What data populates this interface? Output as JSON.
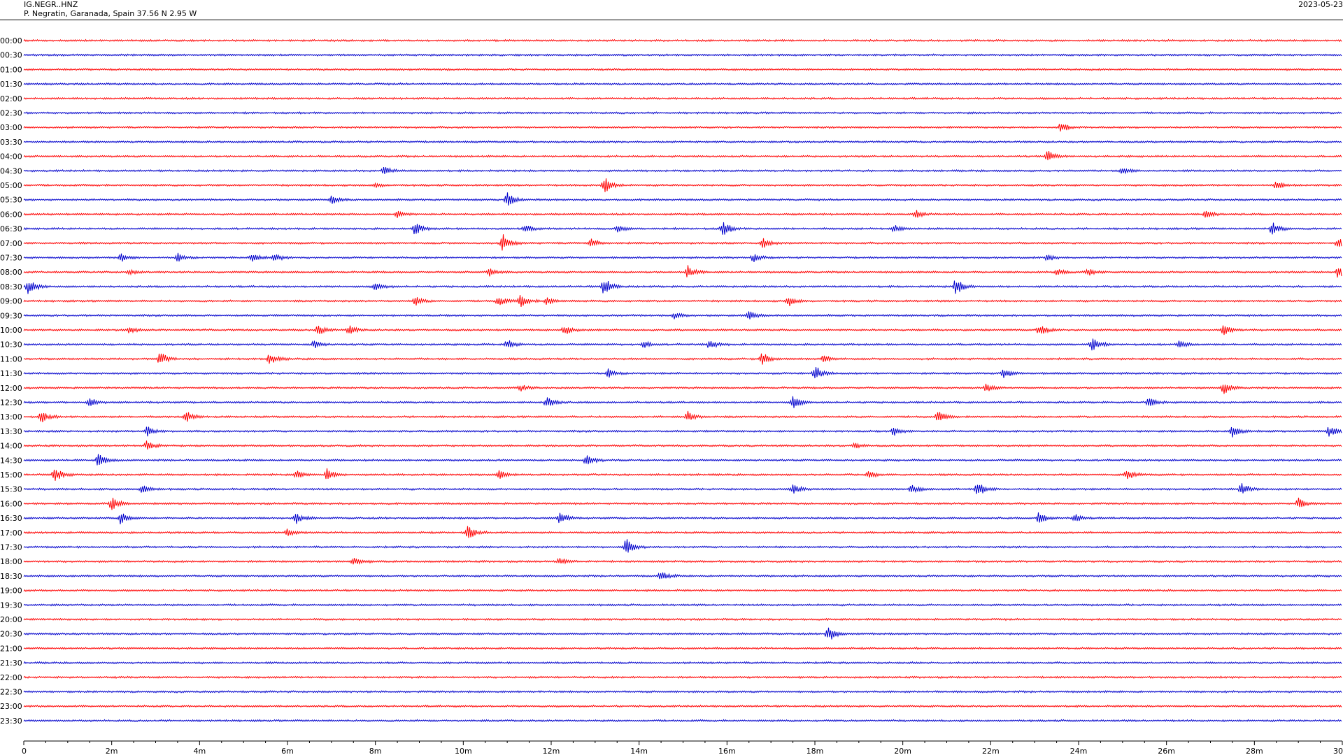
{
  "header": {
    "station": "IG.NEGR..HNZ",
    "location": "P. Negratin, Garanada, Spain  37.56 N 2.95 W",
    "date": "2023-05-23"
  },
  "colors": {
    "odd_trace": "#ff0000",
    "even_trace": "#0000cc",
    "axis": "#000000"
  },
  "chart_data": {
    "type": "line",
    "title": "",
    "row_labels": [
      "00:00",
      "00:30",
      "01:00",
      "01:30",
      "02:00",
      "02:30",
      "03:00",
      "03:30",
      "04:00",
      "04:30",
      "05:00",
      "05:30",
      "06:00",
      "06:30",
      "07:00",
      "07:30",
      "08:00",
      "08:30",
      "09:00",
      "09:30",
      "10:00",
      "10:30",
      "11:00",
      "11:30",
      "12:00",
      "12:30",
      "13:00",
      "13:30",
      "14:00",
      "14:30",
      "15:00",
      "15:30",
      "16:00",
      "16:30",
      "17:00",
      "17:30",
      "18:00",
      "18:30",
      "19:00",
      "19:30",
      "20:00",
      "20:30",
      "21:00",
      "21:30",
      "22:00",
      "22:30",
      "23:00",
      "23:30"
    ],
    "x_ticks": [
      "0",
      "2m",
      "4m",
      "6m",
      "8m",
      "10m",
      "12m",
      "14m",
      "16m",
      "18m",
      "20m",
      "22m",
      "24m",
      "26m",
      "28m",
      "30"
    ],
    "xlim_minutes": [
      0,
      30
    ],
    "events": [
      {
        "row": "03:00",
        "t": 23.6,
        "amp": 0.45
      },
      {
        "row": "04:00",
        "t": 23.3,
        "amp": 0.5
      },
      {
        "row": "04:30",
        "t": 8.2,
        "amp": 0.4
      },
      {
        "row": "04:30",
        "t": 25.0,
        "amp": 0.3
      },
      {
        "row": "05:00",
        "t": 13.2,
        "amp": 0.8
      },
      {
        "row": "05:00",
        "t": 28.5,
        "amp": 0.4
      },
      {
        "row": "05:00",
        "t": 8.0,
        "amp": 0.2
      },
      {
        "row": "05:30",
        "t": 7.0,
        "amp": 0.4
      },
      {
        "row": "05:30",
        "t": 11.0,
        "amp": 0.6
      },
      {
        "row": "06:00",
        "t": 8.5,
        "amp": 0.3
      },
      {
        "row": "06:00",
        "t": 20.3,
        "amp": 0.35
      },
      {
        "row": "06:00",
        "t": 26.9,
        "amp": 0.4
      },
      {
        "row": "06:30",
        "t": 8.9,
        "amp": 0.55
      },
      {
        "row": "06:30",
        "t": 11.4,
        "amp": 0.35
      },
      {
        "row": "06:30",
        "t": 13.5,
        "amp": 0.3
      },
      {
        "row": "06:30",
        "t": 15.9,
        "amp": 0.7
      },
      {
        "row": "06:30",
        "t": 19.8,
        "amp": 0.3
      },
      {
        "row": "06:30",
        "t": 28.4,
        "amp": 0.6
      },
      {
        "row": "07:00",
        "t": 10.9,
        "amp": 0.75
      },
      {
        "row": "07:00",
        "t": 12.9,
        "amp": 0.4
      },
      {
        "row": "07:00",
        "t": 16.8,
        "amp": 0.5
      },
      {
        "row": "07:00",
        "t": 29.9,
        "amp": 0.45
      },
      {
        "row": "07:30",
        "t": 2.2,
        "amp": 0.4
      },
      {
        "row": "07:30",
        "t": 3.5,
        "amp": 0.4
      },
      {
        "row": "07:30",
        "t": 5.2,
        "amp": 0.45
      },
      {
        "row": "07:30",
        "t": 5.7,
        "amp": 0.4
      },
      {
        "row": "07:30",
        "t": 16.6,
        "amp": 0.35
      },
      {
        "row": "07:30",
        "t": 23.3,
        "amp": 0.3
      },
      {
        "row": "08:00",
        "t": 2.4,
        "amp": 0.2
      },
      {
        "row": "08:00",
        "t": 10.6,
        "amp": 0.35
      },
      {
        "row": "08:00",
        "t": 15.1,
        "amp": 0.6
      },
      {
        "row": "08:00",
        "t": 23.5,
        "amp": 0.3
      },
      {
        "row": "08:00",
        "t": 24.2,
        "amp": 0.35
      },
      {
        "row": "08:00",
        "t": 29.9,
        "amp": 0.55
      },
      {
        "row": "08:30",
        "t": 0.1,
        "amp": 0.75
      },
      {
        "row": "08:30",
        "t": 8.0,
        "amp": 0.35
      },
      {
        "row": "08:30",
        "t": 13.2,
        "amp": 0.85
      },
      {
        "row": "08:30",
        "t": 21.2,
        "amp": 0.8
      },
      {
        "row": "09:00",
        "t": 8.9,
        "amp": 0.4
      },
      {
        "row": "09:00",
        "t": 10.8,
        "amp": 0.45
      },
      {
        "row": "09:00",
        "t": 11.3,
        "amp": 0.55
      },
      {
        "row": "09:00",
        "t": 11.9,
        "amp": 0.35
      },
      {
        "row": "09:00",
        "t": 17.4,
        "amp": 0.45
      },
      {
        "row": "09:30",
        "t": 14.8,
        "amp": 0.35
      },
      {
        "row": "09:30",
        "t": 16.5,
        "amp": 0.45
      },
      {
        "row": "10:00",
        "t": 2.4,
        "amp": 0.3
      },
      {
        "row": "10:00",
        "t": 6.7,
        "amp": 0.45
      },
      {
        "row": "10:00",
        "t": 7.4,
        "amp": 0.4
      },
      {
        "row": "10:00",
        "t": 12.3,
        "amp": 0.45
      },
      {
        "row": "10:00",
        "t": 23.1,
        "amp": 0.5
      },
      {
        "row": "10:00",
        "t": 27.3,
        "amp": 0.45
      },
      {
        "row": "10:30",
        "t": 6.6,
        "amp": 0.35
      },
      {
        "row": "10:30",
        "t": 11.0,
        "amp": 0.45
      },
      {
        "row": "10:30",
        "t": 14.1,
        "amp": 0.3
      },
      {
        "row": "10:30",
        "t": 15.6,
        "amp": 0.4
      },
      {
        "row": "10:30",
        "t": 24.3,
        "amp": 0.65
      },
      {
        "row": "10:30",
        "t": 26.3,
        "amp": 0.35
      },
      {
        "row": "11:00",
        "t": 3.1,
        "amp": 0.6
      },
      {
        "row": "11:00",
        "t": 5.6,
        "amp": 0.5
      },
      {
        "row": "11:00",
        "t": 16.8,
        "amp": 0.6
      },
      {
        "row": "11:00",
        "t": 18.2,
        "amp": 0.35
      },
      {
        "row": "11:30",
        "t": 13.3,
        "amp": 0.4
      },
      {
        "row": "11:30",
        "t": 18.0,
        "amp": 0.7
      },
      {
        "row": "11:30",
        "t": 22.3,
        "amp": 0.45
      },
      {
        "row": "12:00",
        "t": 11.3,
        "amp": 0.3
      },
      {
        "row": "12:00",
        "t": 21.9,
        "amp": 0.35
      },
      {
        "row": "12:00",
        "t": 27.3,
        "amp": 0.55
      },
      {
        "row": "12:30",
        "t": 1.5,
        "amp": 0.45
      },
      {
        "row": "12:30",
        "t": 11.9,
        "amp": 0.55
      },
      {
        "row": "12:30",
        "t": 17.5,
        "amp": 0.6
      },
      {
        "row": "12:30",
        "t": 25.6,
        "amp": 0.45
      },
      {
        "row": "13:00",
        "t": 0.4,
        "amp": 0.5
      },
      {
        "row": "13:00",
        "t": 3.7,
        "amp": 0.5
      },
      {
        "row": "13:00",
        "t": 15.1,
        "amp": 0.5
      },
      {
        "row": "13:00",
        "t": 20.8,
        "amp": 0.5
      },
      {
        "row": "13:30",
        "t": 2.8,
        "amp": 0.45
      },
      {
        "row": "13:30",
        "t": 19.8,
        "amp": 0.4
      },
      {
        "row": "13:30",
        "t": 27.5,
        "amp": 0.55
      },
      {
        "row": "13:30",
        "t": 29.7,
        "amp": 0.5
      },
      {
        "row": "14:00",
        "t": 2.8,
        "amp": 0.5
      },
      {
        "row": "14:00",
        "t": 18.9,
        "amp": 0.25
      },
      {
        "row": "14:30",
        "t": 1.7,
        "amp": 0.6
      },
      {
        "row": "14:30",
        "t": 12.8,
        "amp": 0.55
      },
      {
        "row": "15:00",
        "t": 0.7,
        "amp": 0.7
      },
      {
        "row": "15:00",
        "t": 6.2,
        "amp": 0.4
      },
      {
        "row": "15:00",
        "t": 6.9,
        "amp": 0.55
      },
      {
        "row": "15:00",
        "t": 10.8,
        "amp": 0.4
      },
      {
        "row": "15:00",
        "t": 19.2,
        "amp": 0.35
      },
      {
        "row": "15:00",
        "t": 25.1,
        "amp": 0.55
      },
      {
        "row": "15:30",
        "t": 2.7,
        "amp": 0.45
      },
      {
        "row": "15:30",
        "t": 17.5,
        "amp": 0.4
      },
      {
        "row": "15:30",
        "t": 20.2,
        "amp": 0.35
      },
      {
        "row": "15:30",
        "t": 21.7,
        "amp": 0.75
      },
      {
        "row": "15:30",
        "t": 27.7,
        "amp": 0.6
      },
      {
        "row": "16:00",
        "t": 2.0,
        "amp": 0.65
      },
      {
        "row": "16:00",
        "t": 29.0,
        "amp": 0.5
      },
      {
        "row": "16:30",
        "t": 2.2,
        "amp": 0.55
      },
      {
        "row": "16:30",
        "t": 6.2,
        "amp": 0.5
      },
      {
        "row": "16:30",
        "t": 12.2,
        "amp": 0.55
      },
      {
        "row": "16:30",
        "t": 23.1,
        "amp": 0.55
      },
      {
        "row": "16:30",
        "t": 23.9,
        "amp": 0.4
      },
      {
        "row": "17:00",
        "t": 6.0,
        "amp": 0.3
      },
      {
        "row": "17:00",
        "t": 10.1,
        "amp": 0.65
      },
      {
        "row": "17:30",
        "t": 13.7,
        "amp": 0.75
      },
      {
        "row": "18:00",
        "t": 7.5,
        "amp": 0.35
      },
      {
        "row": "18:00",
        "t": 12.2,
        "amp": 0.35
      },
      {
        "row": "18:30",
        "t": 14.5,
        "amp": 0.45
      },
      {
        "row": "20:30",
        "t": 18.3,
        "amp": 0.8
      }
    ]
  }
}
